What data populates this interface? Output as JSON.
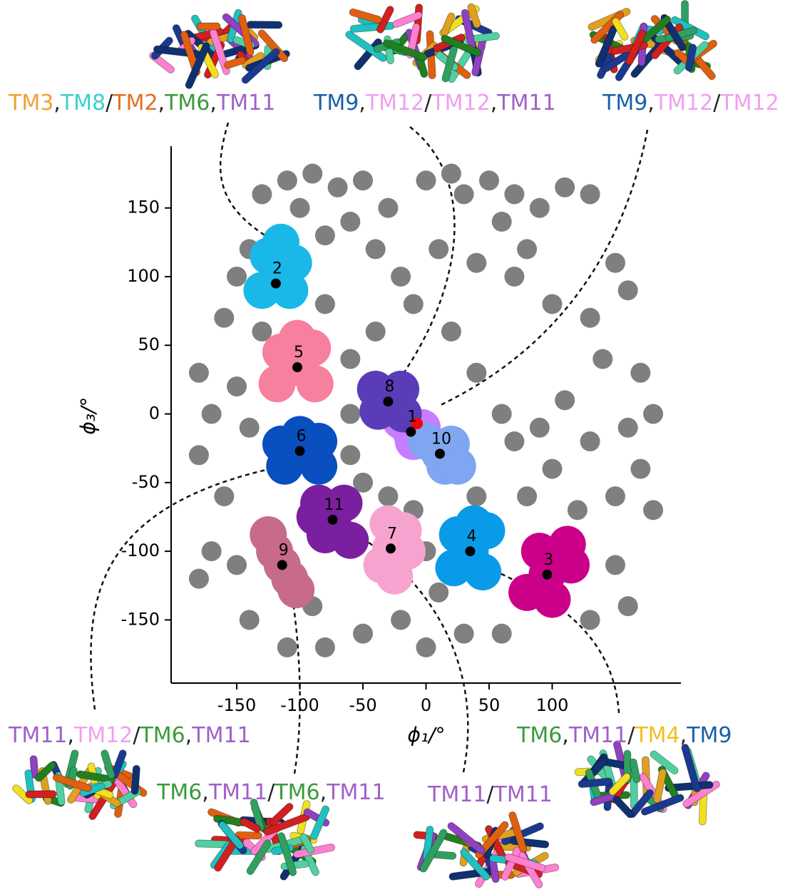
{
  "chart_data": {
    "type": "scatter",
    "xlabel": "ϕ₁/°",
    "ylabel": "ϕ₃/°",
    "xlim": [
      -202,
      202
    ],
    "ylim": [
      -196,
      195
    ],
    "xticks": [
      -150,
      -100,
      -50,
      0,
      50,
      100
    ],
    "yticks": [
      -150,
      -100,
      -50,
      0,
      50,
      100,
      150
    ],
    "background": {
      "color": "#7f7f7f",
      "x": [
        -130,
        -110,
        -90,
        -70,
        -50,
        -60,
        -40,
        -20,
        -10,
        -30,
        0,
        20,
        30,
        50,
        60,
        70,
        90,
        110,
        130,
        -140,
        -150,
        -100,
        -80,
        10,
        40,
        70,
        80,
        100,
        130,
        150,
        160,
        140,
        170,
        180,
        160,
        170,
        150,
        180,
        130,
        100,
        70,
        60,
        40,
        80,
        120,
        150,
        160,
        130,
        60,
        30,
        0,
        -20,
        -50,
        -80,
        -110,
        -140,
        -150,
        -170,
        -180,
        -160,
        -180,
        -170,
        -180,
        -150,
        -140,
        -160,
        -130,
        -60,
        -50,
        -30,
        -10,
        0,
        10,
        -60,
        -40,
        -80,
        -60,
        -90,
        20,
        40,
        110,
        90
      ],
      "y": [
        160,
        170,
        175,
        165,
        170,
        140,
        120,
        100,
        80,
        150,
        170,
        175,
        160,
        170,
        140,
        160,
        150,
        165,
        160,
        120,
        100,
        150,
        130,
        120,
        110,
        100,
        120,
        80,
        70,
        110,
        90,
        40,
        30,
        0,
        -10,
        -40,
        -60,
        -70,
        -20,
        -40,
        -20,
        0,
        -60,
        -60,
        -70,
        -110,
        -140,
        -150,
        -160,
        -160,
        -170,
        -150,
        -160,
        -170,
        -170,
        -150,
        -110,
        -100,
        -120,
        -60,
        -30,
        0,
        30,
        20,
        -10,
        70,
        60,
        -30,
        -50,
        -60,
        -70,
        -100,
        -130,
        40,
        60,
        80,
        0,
        -140,
        60,
        30,
        10,
        -10
      ]
    },
    "reference": {
      "x": -7,
      "y": -7,
      "color": "#ff0000"
    },
    "clusters": [
      {
        "name": "1",
        "color": "#c77dff",
        "center": {
          "x": -12,
          "y": -13
        },
        "x": [
          -12,
          -20,
          -3,
          -10
        ],
        "y": [
          -13,
          -5,
          -10,
          -20
        ]
      },
      {
        "name": "2",
        "color": "#1ab8e8",
        "center": {
          "x": -119,
          "y": 95
        },
        "x": [
          -119,
          -105,
          -125,
          -130,
          -108,
          -115
        ],
        "y": [
          95,
          110,
          115,
          90,
          90,
          125
        ]
      },
      {
        "name": "3",
        "color": "#cc0088",
        "center": {
          "x": 96,
          "y": -117
        },
        "x": [
          96,
          90,
          112,
          80,
          115,
          100
        ],
        "y": [
          -117,
          -100,
          -95,
          -130,
          -110,
          -135
        ]
      },
      {
        "name": "4",
        "color": "#0a9be8",
        "center": {
          "x": 35,
          "y": -100
        },
        "x": [
          35,
          25,
          48,
          22,
          45,
          38
        ],
        "y": [
          -100,
          -88,
          -85,
          -112,
          -115,
          -80
        ]
      },
      {
        "name": "5",
        "color": "#f7809f",
        "center": {
          "x": -102,
          "y": 34
        },
        "x": [
          -102,
          -115,
          -90,
          -118,
          -88,
          -102
        ],
        "y": [
          34,
          45,
          48,
          22,
          22,
          55
        ]
      },
      {
        "name": "6",
        "color": "#0a4fc0",
        "center": {
          "x": -100,
          "y": -27
        },
        "x": [
          -100,
          -115,
          -85,
          -112,
          -85,
          -100
        ],
        "y": [
          -27,
          -22,
          -20,
          -38,
          -38,
          -15
        ]
      },
      {
        "name": "7",
        "color": "#f7a3cf",
        "center": {
          "x": -28,
          "y": -98
        },
        "x": [
          -28,
          -30,
          -18,
          -35,
          -25,
          -15
        ],
        "y": [
          -98,
          -80,
          -85,
          -110,
          -118,
          -100
        ]
      },
      {
        "name": "8",
        "color": "#5a3cb8",
        "center": {
          "x": -30,
          "y": 9
        },
        "x": [
          -30,
          -40,
          -20,
          -38,
          -18
        ],
        "y": [
          9,
          18,
          18,
          2,
          0
        ]
      },
      {
        "name": "9",
        "color": "#c86a8a",
        "center": {
          "x": -114,
          "y": -110
        },
        "x": [
          -125,
          -120,
          -114,
          -108,
          -103
        ],
        "y": [
          -88,
          -100,
          -110,
          -120,
          -128
        ]
      },
      {
        "name": "10",
        "color": "#7fa6f0",
        "center": {
          "x": 11,
          "y": -29
        },
        "x": [
          11,
          0,
          20,
          15,
          25
        ],
        "y": [
          -29,
          -20,
          -22,
          -38,
          -38
        ]
      },
      {
        "name": "11",
        "color": "#7a1fa0",
        "center": {
          "x": -74,
          "y": -77
        },
        "x": [
          -74,
          -85,
          -65,
          -80,
          -60,
          -88
        ],
        "y": [
          -77,
          -65,
          -65,
          -88,
          -92,
          -75
        ]
      }
    ],
    "annotations": [
      {
        "parts": [
          {
            "text": "TM3",
            "color": "#f0a030"
          },
          {
            "text": ",",
            "color": "#222"
          },
          {
            "text": "TM8",
            "color": "#3ad0d0"
          },
          {
            "text": "/",
            "color": "#222"
          },
          {
            "text": "TM2",
            "color": "#e07020"
          },
          {
            "text": ",",
            "color": "#222"
          },
          {
            "text": "TM6",
            "color": "#3a9a3a"
          },
          {
            "text": ",",
            "color": "#222"
          },
          {
            "text": "TM11",
            "color": "#a060c8"
          }
        ]
      },
      {
        "parts": [
          {
            "text": "TM9",
            "color": "#1a5fa8"
          },
          {
            "text": ",",
            "color": "#222"
          },
          {
            "text": "TM12",
            "color": "#f0a0f0"
          },
          {
            "text": "/",
            "color": "#222"
          },
          {
            "text": "TM12",
            "color": "#f0a0f0"
          },
          {
            "text": ",",
            "color": "#222"
          },
          {
            "text": "TM11",
            "color": "#a060c8"
          }
        ]
      },
      {
        "parts": [
          {
            "text": "TM9",
            "color": "#1a5fa8"
          },
          {
            "text": ",",
            "color": "#222"
          },
          {
            "text": "TM12",
            "color": "#f0a0f0"
          },
          {
            "text": "/",
            "color": "#222"
          },
          {
            "text": "TM12",
            "color": "#f0a0f0"
          }
        ]
      },
      {
        "parts": [
          {
            "text": "TM11",
            "color": "#a060c8"
          },
          {
            "text": ",",
            "color": "#222"
          },
          {
            "text": "TM12",
            "color": "#f0a0f0"
          },
          {
            "text": "/",
            "color": "#222"
          },
          {
            "text": "TM6",
            "color": "#3a9a3a"
          },
          {
            "text": ",",
            "color": "#222"
          },
          {
            "text": "TM11",
            "color": "#a060c8"
          }
        ]
      },
      {
        "parts": [
          {
            "text": "TM6",
            "color": "#3a9a3a"
          },
          {
            "text": ",",
            "color": "#222"
          },
          {
            "text": "TM11",
            "color": "#a060c8"
          },
          {
            "text": "/",
            "color": "#222"
          },
          {
            "text": "TM6",
            "color": "#3a9a3a"
          },
          {
            "text": ",",
            "color": "#222"
          },
          {
            "text": "TM11",
            "color": "#a060c8"
          }
        ]
      },
      {
        "parts": [
          {
            "text": "TM11",
            "color": "#a060c8"
          },
          {
            "text": "/",
            "color": "#222"
          },
          {
            "text": "TM11",
            "color": "#a060c8"
          }
        ]
      },
      {
        "parts": [
          {
            "text": "TM6",
            "color": "#3a9a3a"
          },
          {
            "text": ",",
            "color": "#222"
          },
          {
            "text": "TM11",
            "color": "#a060c8"
          },
          {
            "text": "/",
            "color": "#222"
          },
          {
            "text": "TM4",
            "color": "#f0c020"
          },
          {
            "text": ",",
            "color": "#222"
          },
          {
            "text": "TM9",
            "color": "#1a5fa8"
          }
        ]
      }
    ]
  }
}
